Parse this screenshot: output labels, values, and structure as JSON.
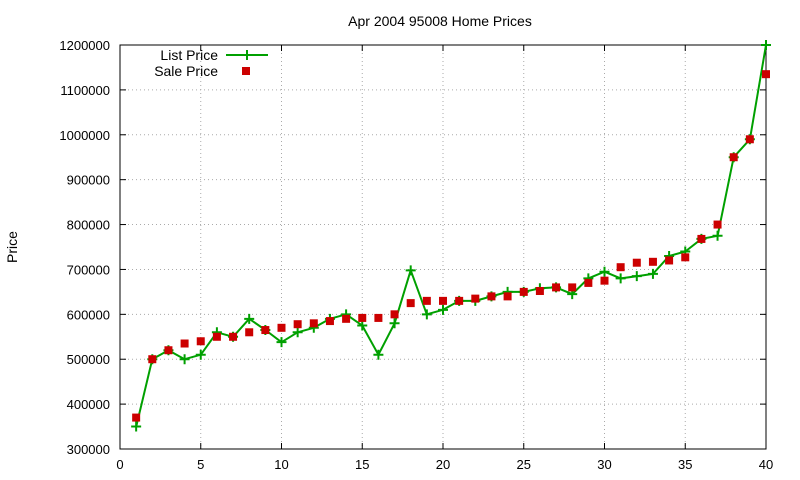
{
  "chart_data": {
    "type": "line",
    "title": "Apr 2004 95008 Home Prices",
    "xlabel": "",
    "ylabel": "Price",
    "xlim": [
      0,
      40
    ],
    "ylim": [
      300000,
      1200000
    ],
    "xticks": [
      "0",
      "5",
      "10",
      "15",
      "20",
      "25",
      "30",
      "35",
      "40"
    ],
    "yticks": [
      "300000",
      "400000",
      "500000",
      "600000",
      "700000",
      "800000",
      "900000",
      "1000000",
      "1100000",
      "1200000"
    ],
    "grid": true,
    "legend_position": "top-left",
    "x": [
      1,
      2,
      3,
      4,
      5,
      6,
      7,
      8,
      9,
      10,
      11,
      12,
      13,
      14,
      15,
      16,
      17,
      18,
      19,
      20,
      21,
      22,
      23,
      24,
      25,
      26,
      27,
      28,
      29,
      30,
      31,
      32,
      33,
      34,
      35,
      36,
      37,
      38,
      39,
      40
    ],
    "series": [
      {
        "name": "List Price",
        "style": "line-plus",
        "color": "#00a000",
        "values": [
          350000,
          500000,
          520000,
          500000,
          510000,
          560000,
          550000,
          590000,
          565000,
          538000,
          560000,
          570000,
          590000,
          600000,
          575000,
          510000,
          580000,
          698000,
          600000,
          610000,
          630000,
          630000,
          640000,
          650000,
          650000,
          658000,
          660000,
          645000,
          680000,
          695000,
          680000,
          685000,
          690000,
          730000,
          740000,
          768000,
          775000,
          950000,
          990000,
          1200000
        ]
      },
      {
        "name": "Sale Price",
        "style": "square-points",
        "color": "#cc0000",
        "values": [
          370000,
          500000,
          520000,
          535000,
          540000,
          550000,
          550000,
          560000,
          565000,
          570000,
          578000,
          580000,
          585000,
          590000,
          592000,
          592000,
          600000,
          625000,
          630000,
          630000,
          630000,
          635000,
          640000,
          640000,
          650000,
          652000,
          660000,
          660000,
          670000,
          675000,
          705000,
          715000,
          717000,
          720000,
          727000,
          768000,
          800000,
          950000,
          990000,
          1135000
        ]
      }
    ]
  }
}
